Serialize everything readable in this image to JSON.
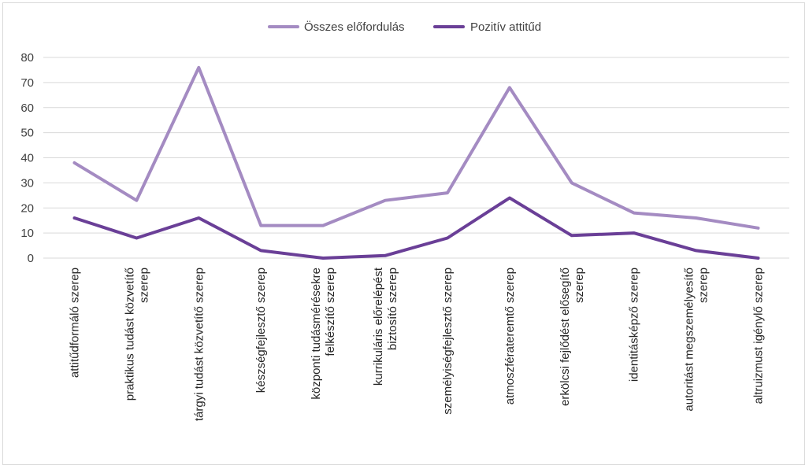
{
  "chart_data": {
    "type": "line",
    "title": "",
    "xlabel": "",
    "ylabel": "",
    "ylim": [
      0,
      80
    ],
    "yticks": [
      0,
      10,
      20,
      30,
      40,
      50,
      60,
      70,
      80
    ],
    "grid": true,
    "legend": "top-center",
    "categories": [
      [
        "attitűdformáló szerep"
      ],
      [
        "praktikus tudást közvetítő",
        "szerep"
      ],
      [
        "tárgyi tudást közvetítő szerep"
      ],
      [
        "készségfejlesztő szerep"
      ],
      [
        "központi tudásmérésekre",
        "felkészítő szerep"
      ],
      [
        "kurrikuláris előrelépést",
        "biztosító szerep"
      ],
      [
        "személyiségfejlesztő szerep"
      ],
      [
        "atmoszférateremtő szerep"
      ],
      [
        "erkölcsi fejlődést elősegítő",
        "szerep"
      ],
      [
        "identitásképző szerep"
      ],
      [
        "autoritást megszemélyesítő",
        "szerep"
      ],
      [
        "altruizmust igénylő szerep"
      ]
    ],
    "series": [
      {
        "name": "Összes előfordulás",
        "color": "#a48bc2",
        "values": [
          38,
          23,
          76,
          13,
          13,
          23,
          26,
          68,
          30,
          18,
          16,
          12
        ]
      },
      {
        "name": "Pozitív attitűd",
        "color": "#6a3f97",
        "values": [
          16,
          8,
          16,
          3,
          0,
          1,
          8,
          24,
          9,
          10,
          3,
          0
        ]
      }
    ]
  }
}
